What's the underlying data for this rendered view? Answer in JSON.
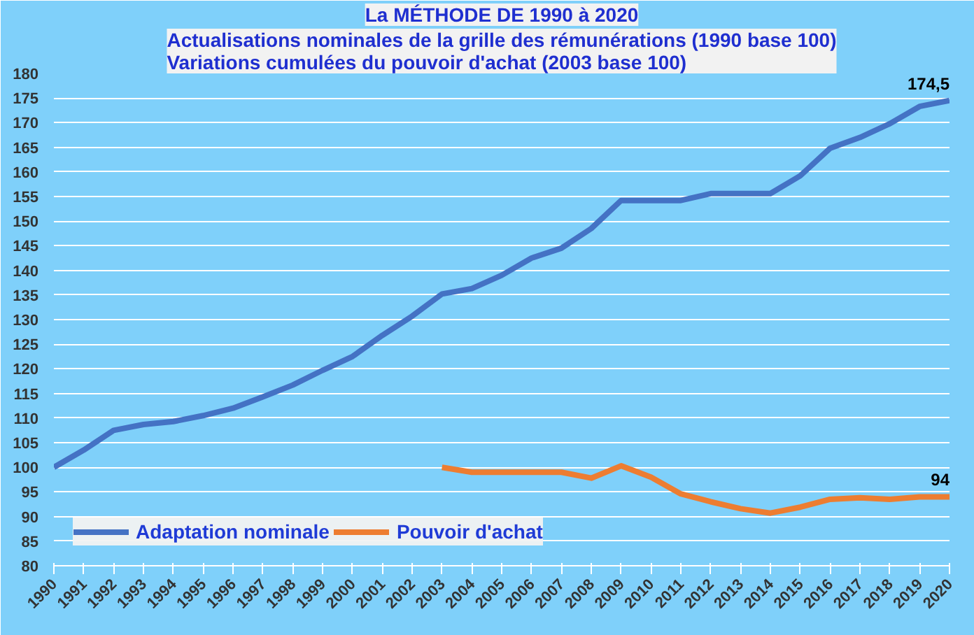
{
  "chart_data": {
    "type": "line",
    "title": "La MÉTHODE DE 1990 à 2020",
    "subtitle": "Actualisations nominales de la grille des rémunérations (1990 base 100)\nVariations cumulées du pouvoir d'achat (2003 base 100)",
    "categories": [
      "1990",
      "1991",
      "1992",
      "1993",
      "1994",
      "1995",
      "1996",
      "1997",
      "1998",
      "1999",
      "2000",
      "2001",
      "2002",
      "2003",
      "2004",
      "2005",
      "2006",
      "2007",
      "2008",
      "2009",
      "2010",
      "2011",
      "2012",
      "2013",
      "2014",
      "2015",
      "2016",
      "2017",
      "2018",
      "2019",
      "2020"
    ],
    "series": [
      {
        "name": "Adaptation nominale",
        "color": "#4472c4",
        "values": [
          100,
          103.5,
          107.5,
          108.7,
          109.3,
          110.5,
          112,
          114.3,
          116.7,
          119.7,
          122.5,
          126.8,
          130.7,
          135.2,
          136.3,
          139,
          142.5,
          144.5,
          148.5,
          154.2,
          154.2,
          154.2,
          155.6,
          155.6,
          155.6,
          159.2,
          164.8,
          167,
          169.8,
          173.3,
          174.5
        ],
        "value_labels": [
          null,
          null,
          null,
          null,
          null,
          null,
          null,
          null,
          null,
          null,
          null,
          null,
          null,
          null,
          null,
          null,
          null,
          null,
          null,
          null,
          null,
          null,
          null,
          null,
          null,
          null,
          null,
          null,
          null,
          null,
          "174,5"
        ]
      },
      {
        "name": "Pouvoir d'achat",
        "color": "#ed7d31",
        "values": [
          null,
          null,
          null,
          null,
          null,
          null,
          null,
          null,
          null,
          null,
          null,
          null,
          null,
          100,
          99,
          99,
          99,
          99,
          97.8,
          100.3,
          98,
          94.6,
          93,
          91.6,
          90.7,
          91.9,
          93.5,
          93.8,
          93.5,
          94,
          94
        ],
        "value_labels": [
          null,
          null,
          null,
          null,
          null,
          null,
          null,
          null,
          null,
          null,
          null,
          null,
          null,
          null,
          null,
          null,
          null,
          null,
          null,
          null,
          null,
          null,
          null,
          null,
          null,
          null,
          null,
          null,
          null,
          null,
          "94"
        ]
      }
    ],
    "ylim": [
      80,
      180
    ],
    "yticks": [
      80,
      85,
      90,
      95,
      100,
      105,
      110,
      115,
      120,
      125,
      130,
      135,
      140,
      145,
      150,
      155,
      160,
      165,
      170,
      175,
      180
    ],
    "grid": "y",
    "legend": "bottom left",
    "marker": "none",
    "line_style": "solid"
  }
}
